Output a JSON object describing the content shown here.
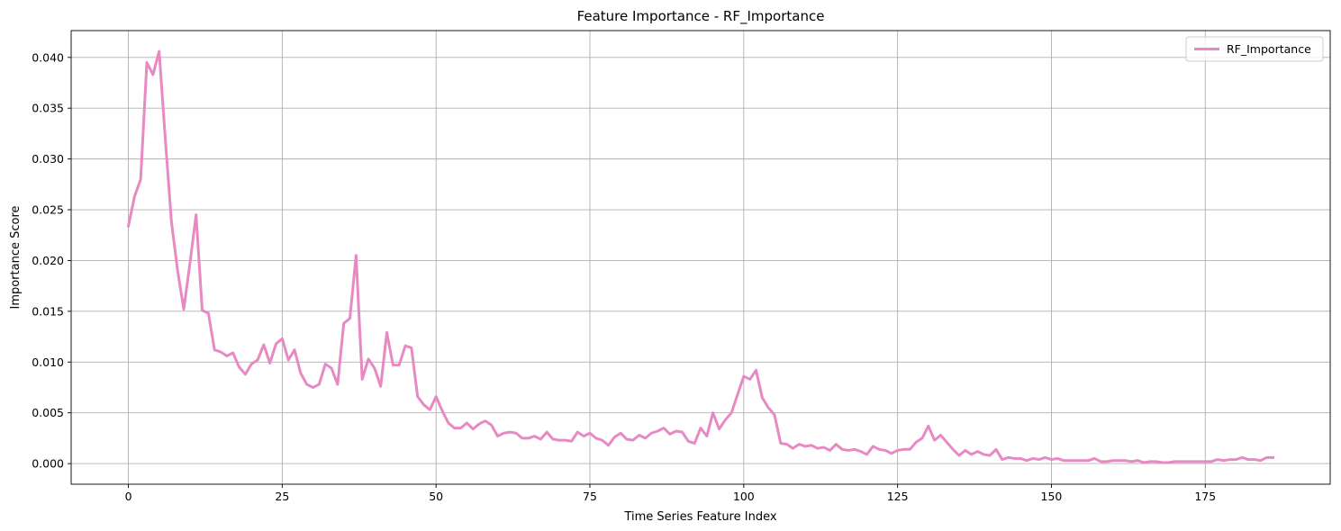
{
  "chart_data": {
    "type": "line",
    "title": "Feature Importance - RF_Importance",
    "xlabel": "Time Series Feature Index",
    "ylabel": "Importance Score",
    "xlim": [
      -9.3,
      195.3
    ],
    "ylim": [
      -0.00203,
      0.04264
    ],
    "xticks": [
      0,
      25,
      50,
      75,
      100,
      125,
      150,
      175
    ],
    "yticks": [
      0.0,
      0.005,
      0.01,
      0.015,
      0.02,
      0.025,
      0.03,
      0.035,
      0.04
    ],
    "ytick_labels": [
      "0.000",
      "0.005",
      "0.010",
      "0.015",
      "0.020",
      "0.025",
      "0.030",
      "0.035",
      "0.040"
    ],
    "grid": true,
    "legend_position": "top-right",
    "series": [
      {
        "name": "RF_Importance",
        "color": "#e78ac3",
        "x_start": 0,
        "values": [
          0.0234,
          0.0263,
          0.028,
          0.0395,
          0.0383,
          0.0406,
          0.032,
          0.0238,
          0.019,
          0.0152,
          0.0197,
          0.0245,
          0.0151,
          0.0148,
          0.0112,
          0.011,
          0.0106,
          0.0109,
          0.0095,
          0.0088,
          0.0098,
          0.0102,
          0.0117,
          0.0099,
          0.0118,
          0.0123,
          0.0102,
          0.0112,
          0.0089,
          0.0078,
          0.0075,
          0.0078,
          0.0098,
          0.0094,
          0.0078,
          0.0138,
          0.0143,
          0.0205,
          0.0083,
          0.0103,
          0.0094,
          0.0076,
          0.0129,
          0.0097,
          0.0097,
          0.0116,
          0.0114,
          0.0066,
          0.0058,
          0.0053,
          0.0066,
          0.0052,
          0.004,
          0.0035,
          0.0035,
          0.004,
          0.0034,
          0.0039,
          0.0042,
          0.0038,
          0.0027,
          0.003,
          0.0031,
          0.003,
          0.0025,
          0.0025,
          0.0027,
          0.0024,
          0.0031,
          0.0024,
          0.0023,
          0.0023,
          0.0022,
          0.0031,
          0.0027,
          0.003,
          0.0025,
          0.0023,
          0.0018,
          0.0026,
          0.003,
          0.0024,
          0.0023,
          0.0028,
          0.0025,
          0.003,
          0.0032,
          0.0035,
          0.0029,
          0.0032,
          0.0031,
          0.0022,
          0.002,
          0.0035,
          0.0027,
          0.005,
          0.0034,
          0.0043,
          0.005,
          0.0068,
          0.0086,
          0.0083,
          0.0092,
          0.0065,
          0.0055,
          0.0048,
          0.002,
          0.0019,
          0.0015,
          0.0019,
          0.0017,
          0.0018,
          0.0015,
          0.0016,
          0.0013,
          0.0019,
          0.0014,
          0.0013,
          0.0014,
          0.0012,
          0.0009,
          0.0017,
          0.0014,
          0.0013,
          0.001,
          0.0013,
          0.0014,
          0.0014,
          0.0021,
          0.0025,
          0.0037,
          0.0023,
          0.0028,
          0.0021,
          0.0014,
          0.0008,
          0.0013,
          0.0009,
          0.0012,
          0.0009,
          0.0008,
          0.0014,
          0.0004,
          0.0006,
          0.0005,
          0.0005,
          0.0003,
          0.0005,
          0.0004,
          0.0006,
          0.0004,
          0.0005,
          0.0003,
          0.0003,
          0.0003,
          0.0003,
          0.0003,
          0.0005,
          0.0002,
          0.0002,
          0.0003,
          0.0003,
          0.0003,
          0.0002,
          0.0003,
          0.0001,
          0.0002,
          0.0002,
          0.0001,
          0.0001,
          0.0002,
          0.0002,
          0.0002,
          0.0002,
          0.0002,
          0.0002,
          0.0002,
          0.0004,
          0.0003,
          0.0004,
          0.0004,
          0.0006,
          0.0004,
          0.0004,
          0.0003,
          0.0006,
          0.0006
        ]
      }
    ]
  }
}
